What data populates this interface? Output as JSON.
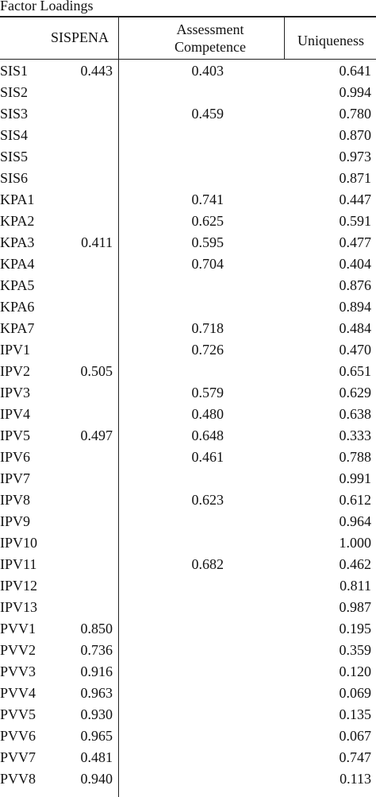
{
  "table": {
    "title": "Factor Loadings",
    "headers": {
      "sispena": "SISPENA",
      "assessment_line1": "Assessment",
      "assessment_line2": "Competence",
      "uniqueness": "Uniqueness"
    },
    "rows": [
      {
        "item": "SIS1",
        "sispena": "0.443",
        "ac": "0.403",
        "u": "0.641"
      },
      {
        "item": "SIS2",
        "sispena": "",
        "ac": "",
        "u": "0.994"
      },
      {
        "item": "SIS3",
        "sispena": "",
        "ac": "0.459",
        "u": "0.780"
      },
      {
        "item": "SIS4",
        "sispena": "",
        "ac": "",
        "u": "0.870"
      },
      {
        "item": "SIS5",
        "sispena": "",
        "ac": "",
        "u": "0.973"
      },
      {
        "item": "SIS6",
        "sispena": "",
        "ac": "",
        "u": "0.871"
      },
      {
        "item": "KPA1",
        "sispena": "",
        "ac": "0.741",
        "u": "0.447"
      },
      {
        "item": "KPA2",
        "sispena": "",
        "ac": "0.625",
        "u": "0.591"
      },
      {
        "item": "KPA3",
        "sispena": "0.411",
        "ac": "0.595",
        "u": "0.477"
      },
      {
        "item": "KPA4",
        "sispena": "",
        "ac": "0.704",
        "u": "0.404"
      },
      {
        "item": "KPA5",
        "sispena": "",
        "ac": "",
        "u": "0.876"
      },
      {
        "item": "KPA6",
        "sispena": "",
        "ac": "",
        "u": "0.894"
      },
      {
        "item": "KPA7",
        "sispena": "",
        "ac": "0.718",
        "u": "0.484"
      },
      {
        "item": "IPV1",
        "sispena": "",
        "ac": "0.726",
        "u": "0.470"
      },
      {
        "item": "IPV2",
        "sispena": "0.505",
        "ac": "",
        "u": "0.651"
      },
      {
        "item": "IPV3",
        "sispena": "",
        "ac": "0.579",
        "u": "0.629"
      },
      {
        "item": "IPV4",
        "sispena": "",
        "ac": "0.480",
        "u": "0.638"
      },
      {
        "item": "IPV5",
        "sispena": "0.497",
        "ac": "0.648",
        "u": "0.333"
      },
      {
        "item": "IPV6",
        "sispena": "",
        "ac": "0.461",
        "u": "0.788"
      },
      {
        "item": "IPV7",
        "sispena": "",
        "ac": "",
        "u": "0.991"
      },
      {
        "item": "IPV8",
        "sispena": "",
        "ac": "0.623",
        "u": "0.612"
      },
      {
        "item": "IPV9",
        "sispena": "",
        "ac": "",
        "u": "0.964"
      },
      {
        "item": "IPV10",
        "sispena": "",
        "ac": "",
        "u": "1.000"
      },
      {
        "item": "IPV11",
        "sispena": "",
        "ac": "0.682",
        "u": "0.462"
      },
      {
        "item": "IPV12",
        "sispena": "",
        "ac": "",
        "u": "0.811"
      },
      {
        "item": "IPV13",
        "sispena": "",
        "ac": "",
        "u": "0.987"
      },
      {
        "item": "PVV1",
        "sispena": "0.850",
        "ac": "",
        "u": "0.195"
      },
      {
        "item": "PVV2",
        "sispena": "0.736",
        "ac": "",
        "u": "0.359"
      },
      {
        "item": "PVV3",
        "sispena": "0.916",
        "ac": "",
        "u": "0.120"
      },
      {
        "item": "PVV4",
        "sispena": "0.963",
        "ac": "",
        "u": "0.069"
      },
      {
        "item": "PVV5",
        "sispena": "0.930",
        "ac": "",
        "u": "0.135"
      },
      {
        "item": "PVV6",
        "sispena": "0.965",
        "ac": "",
        "u": "0.067"
      },
      {
        "item": "PVV7",
        "sispena": "0.481",
        "ac": "",
        "u": "0.747"
      },
      {
        "item": "PVV8",
        "sispena": "0.940",
        "ac": "",
        "u": "0.113"
      }
    ]
  }
}
